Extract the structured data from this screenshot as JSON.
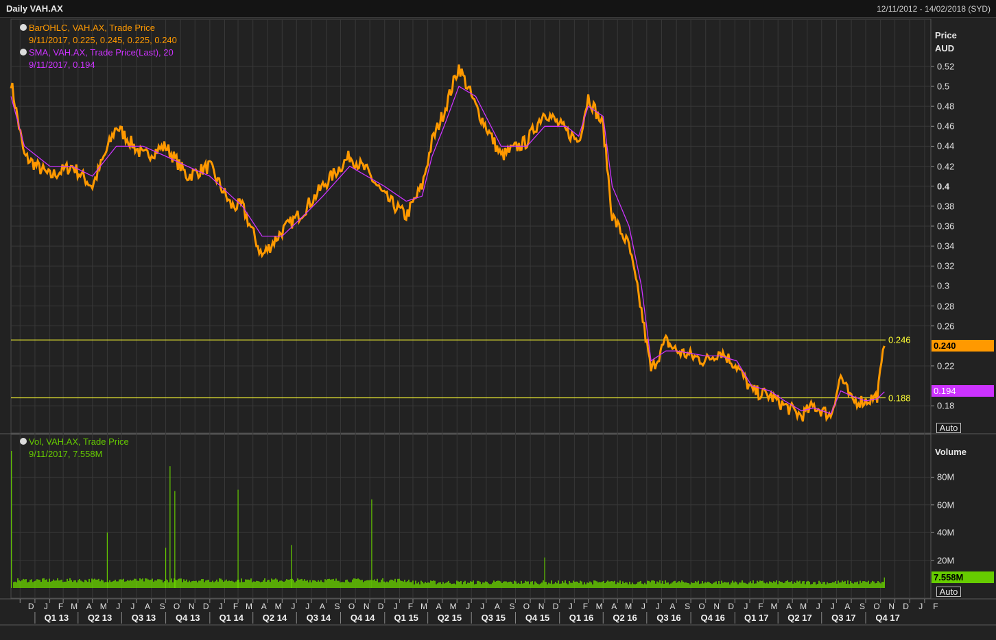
{
  "header": {
    "title": "Daily VAH.AX",
    "date_range": "12/11/2012 - 14/02/2018 (SYD)"
  },
  "legend": {
    "price_series": "BarOHLC, VAH.AX, Trade Price",
    "price_values": "9/11/2017, 0.225, 0.245, 0.225, 0.240",
    "sma_series": "SMA, VAH.AX, Trade Price(Last),  20",
    "sma_values": "9/11/2017, 0.194",
    "vol_series": "Vol, VAH.AX, Trade Price",
    "vol_values": "9/11/2017, 7.558M"
  },
  "axis": {
    "price_title": "Price",
    "price_unit": "AUD",
    "price_ticks": [
      "0.52",
      "0.5",
      "0.48",
      "0.46",
      "0.44",
      "0.42",
      "0.4",
      "0.38",
      "0.36",
      "0.34",
      "0.32",
      "0.3",
      "0.28",
      "0.26",
      "0.22",
      "0.18"
    ],
    "volume_title": "Volume",
    "volume_ticks": [
      "80M",
      "60M",
      "40M",
      "20M"
    ],
    "auto_price": "Auto",
    "auto_volume": "Auto",
    "months": [
      "D",
      "J",
      "F",
      "M",
      "A",
      "M",
      "J",
      "J",
      "A",
      "S",
      "O",
      "N",
      "D",
      "J",
      "F",
      "M",
      "A",
      "M",
      "J",
      "J",
      "A",
      "S",
      "O",
      "N",
      "D",
      "J",
      "F",
      "M",
      "A",
      "M",
      "J",
      "J",
      "A",
      "S",
      "O",
      "N",
      "D",
      "J",
      "F",
      "M",
      "A",
      "M",
      "J",
      "J",
      "A",
      "S",
      "O",
      "N",
      "D",
      "J",
      "F",
      "M",
      "A",
      "M",
      "J",
      "J",
      "A",
      "S",
      "O",
      "N",
      "D",
      "J",
      "F"
    ],
    "quarters": [
      "Q1 13",
      "Q2 13",
      "Q3 13",
      "Q4 13",
      "Q1 14",
      "Q2 14",
      "Q3 14",
      "Q4 14",
      "Q1 15",
      "Q2 15",
      "Q3 15",
      "Q4 15",
      "Q1 16",
      "Q2 16",
      "Q3 16",
      "Q4 16",
      "Q1 17",
      "Q2 17",
      "Q3 17",
      "Q4 17"
    ]
  },
  "badges": {
    "last_price": "0.240",
    "sma_value": "0.194",
    "last_volume": "7.558M"
  },
  "hlines": {
    "upper": "0.246",
    "lower": "0.188"
  },
  "colors": {
    "price": "#ff9900",
    "sma": "#cc33ff",
    "volume": "#66cc00",
    "hline": "#ffff33",
    "grid": "#383838",
    "background": "#222222"
  },
  "chart_data": {
    "type": "line",
    "title": "Daily VAH.AX",
    "ylabel": "Price AUD",
    "ylim": [
      0.16,
      0.535
    ],
    "x": [
      "2012-11-12",
      "2012-12-10",
      "2013-02-01",
      "2013-03-20",
      "2013-05-01",
      "2013-06-20",
      "2013-08-15",
      "2013-10-01",
      "2013-11-15",
      "2014-01-01",
      "2014-02-15",
      "2014-03-10",
      "2014-04-20",
      "2014-06-01",
      "2014-07-15",
      "2014-08-25",
      "2014-10-20",
      "2014-11-25",
      "2014-12-31",
      "2015-02-15",
      "2015-03-20",
      "2015-04-10",
      "2015-05-05",
      "2015-06-05",
      "2015-07-10",
      "2015-09-01",
      "2015-10-25",
      "2015-12-01",
      "2016-01-15",
      "2016-02-10",
      "2016-03-01",
      "2016-04-01",
      "2016-04-20",
      "2016-05-25",
      "2016-06-20",
      "2016-07-10",
      "2016-08-10",
      "2016-09-01",
      "2016-11-01",
      "2016-12-01",
      "2017-01-05",
      "2017-02-05",
      "2017-03-15",
      "2017-04-15",
      "2017-05-20",
      "2017-06-15",
      "2017-07-20",
      "2017-08-10",
      "2017-09-01",
      "2017-10-01",
      "2017-10-25",
      "2017-11-09"
    ],
    "series": [
      {
        "name": "BarOHLC, VAH.AX, Trade Price",
        "values": [
          0.505,
          0.43,
          0.41,
          0.42,
          0.4,
          0.46,
          0.43,
          0.44,
          0.41,
          0.42,
          0.38,
          0.38,
          0.33,
          0.355,
          0.375,
          0.4,
          0.43,
          0.415,
          0.39,
          0.37,
          0.4,
          0.445,
          0.475,
          0.52,
          0.48,
          0.43,
          0.445,
          0.475,
          0.455,
          0.445,
          0.49,
          0.46,
          0.37,
          0.34,
          0.275,
          0.215,
          0.245,
          0.235,
          0.225,
          0.235,
          0.22,
          0.195,
          0.19,
          0.18,
          0.17,
          0.18,
          0.17,
          0.21,
          0.185,
          0.185,
          0.19,
          0.24
        ]
      },
      {
        "name": "SMA, VAH.AX, Trade Price(Last),  20",
        "values": [
          0.49,
          0.44,
          0.42,
          0.42,
          0.41,
          0.44,
          0.44,
          0.43,
          0.42,
          0.41,
          0.39,
          0.38,
          0.35,
          0.35,
          0.37,
          0.39,
          0.42,
          0.41,
          0.4,
          0.385,
          0.39,
          0.43,
          0.46,
          0.5,
          0.49,
          0.44,
          0.44,
          0.46,
          0.46,
          0.45,
          0.48,
          0.47,
          0.4,
          0.36,
          0.3,
          0.225,
          0.235,
          0.235,
          0.23,
          0.23,
          0.225,
          0.2,
          0.195,
          0.185,
          0.175,
          0.178,
          0.172,
          0.195,
          0.19,
          0.185,
          0.187,
          0.194
        ]
      }
    ],
    "volume": {
      "name": "Vol, VAH.AX, Trade Price",
      "unit": "M",
      "ylim": [
        0,
        95
      ],
      "spikes": [
        {
          "date": "2012-11-13",
          "value": 99
        },
        {
          "date": "2013-06-01",
          "value": 40
        },
        {
          "date": "2013-10-01",
          "value": 29
        },
        {
          "date": "2013-10-10",
          "value": 88
        },
        {
          "date": "2013-10-20",
          "value": 70
        },
        {
          "date": "2014-03-01",
          "value": 71
        },
        {
          "date": "2014-06-20",
          "value": 31
        },
        {
          "date": "2014-12-05",
          "value": 64
        },
        {
          "date": "2015-12-01",
          "value": 22
        },
        {
          "date": "2017-11-09",
          "value": 7.558
        }
      ],
      "baseline": 4
    },
    "hlines": [
      0.246,
      0.188
    ]
  }
}
